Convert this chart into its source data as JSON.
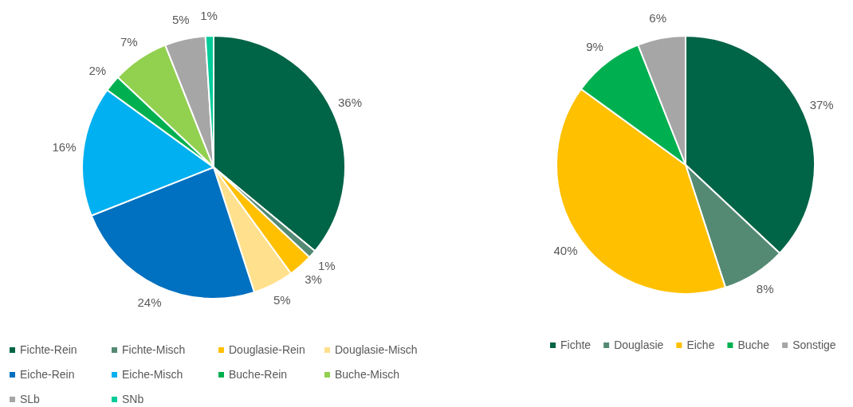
{
  "chart_data": [
    {
      "type": "pie",
      "categories": [
        "Fichte-Rein",
        "Fichte-Misch",
        "Douglasie-Rein",
        "Douglasie-Misch",
        "Eiche-Rein",
        "Eiche-Misch",
        "Buche-Rein",
        "Buche-Misch",
        "SLb",
        "SNb"
      ],
      "values": [
        36,
        1,
        3,
        5,
        24,
        16,
        2,
        7,
        5,
        1
      ],
      "value_labels": [
        "36%",
        "1%",
        "3%",
        "5%",
        "24%",
        "16%",
        "2%",
        "7%",
        "5%",
        "1%"
      ],
      "colors": [
        "#006446",
        "#548a74",
        "#ffc000",
        "#ffe08c",
        "#0070c0",
        "#00b0f0",
        "#00b050",
        "#92d050",
        "#a6a6a6",
        "#00cc99"
      ],
      "legend": "bottom"
    },
    {
      "type": "pie",
      "categories": [
        "Fichte",
        "Douglasie",
        "Eiche",
        "Buche",
        "Sonstige"
      ],
      "values": [
        37,
        8,
        40,
        9,
        6
      ],
      "value_labels": [
        "37%",
        "8%",
        "40%",
        "9%",
        "6%"
      ],
      "colors": [
        "#006446",
        "#548a74",
        "#ffc000",
        "#00b050",
        "#a6a6a6"
      ],
      "legend": "bottom"
    }
  ]
}
